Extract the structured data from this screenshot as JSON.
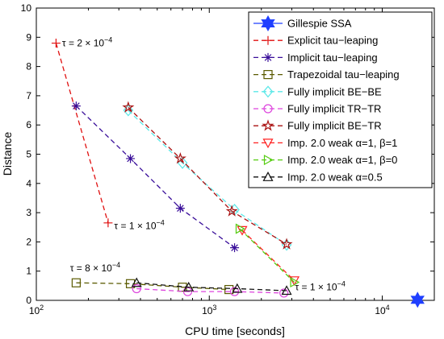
{
  "chart_data": {
    "type": "line",
    "xscale": "log",
    "xlabel": "CPU time [seconds]",
    "ylabel": "Distance",
    "xlim": [
      100,
      20000
    ],
    "ylim": [
      0,
      10
    ],
    "x_ticks": [
      {
        "value": 100,
        "base": "10",
        "exp": "2"
      },
      {
        "value": 1000,
        "base": "10",
        "exp": "3"
      },
      {
        "value": 10000,
        "base": "10",
        "exp": "4"
      }
    ],
    "y_ticks": [
      "0",
      "1",
      "2",
      "3",
      "4",
      "5",
      "6",
      "7",
      "8",
      "9",
      "10"
    ],
    "grid": false,
    "legend_position": "top-right",
    "series": [
      {
        "name": "Gillespie SSA",
        "color": "#1f3fff",
        "marker": "hexstar",
        "dash": "solid",
        "points": [
          [
            16000,
            0.02
          ]
        ]
      },
      {
        "name": "Explicit tau−leaping",
        "color": "#e01010",
        "marker": "plus",
        "dash": "dashed",
        "points": [
          [
            130,
            8.8
          ],
          [
            260,
            2.65
          ]
        ]
      },
      {
        "name": "Implicit tau−leaping",
        "color": "#3a0f9a",
        "marker": "asterisk",
        "dash": "dashed",
        "points": [
          [
            170,
            6.65
          ],
          [
            350,
            4.85
          ],
          [
            680,
            3.15
          ],
          [
            1400,
            1.8
          ]
        ]
      },
      {
        "name": "Trapezoidal tau−leaping",
        "color": "#5a5a00",
        "marker": "square",
        "dash": "dashed",
        "points": [
          [
            170,
            0.6
          ],
          [
            350,
            0.57
          ],
          [
            700,
            0.45
          ],
          [
            1300,
            0.37
          ]
        ]
      },
      {
        "name": "Fully implicit BE−BE",
        "color": "#5ae8e8",
        "marker": "diamond",
        "dash": "dashed",
        "points": [
          [
            340,
            6.5
          ],
          [
            700,
            4.7
          ],
          [
            1400,
            3.1
          ],
          [
            2800,
            1.9
          ]
        ]
      },
      {
        "name": "Fully implicit TR−TR",
        "color": "#dd44dd",
        "marker": "circle",
        "dash": "dashed",
        "points": [
          [
            380,
            0.4
          ],
          [
            750,
            0.3
          ],
          [
            1400,
            0.3
          ],
          [
            2700,
            0.25
          ]
        ]
      },
      {
        "name": "Fully implicit BE−TR",
        "color": "#aa1111",
        "marker": "star",
        "dash": "dashed",
        "points": [
          [
            340,
            6.6
          ],
          [
            680,
            4.85
          ],
          [
            1350,
            3.05
          ],
          [
            2800,
            1.92
          ]
        ]
      },
      {
        "name": "Imp. 2.0 weak α=1, β=1",
        "color": "#ff2020",
        "marker": "tri-down",
        "dash": "dashed",
        "points": [
          [
            1550,
            2.4
          ],
          [
            3100,
            0.68
          ]
        ]
      },
      {
        "name": "Imp. 2.0 weak α=1, β=0",
        "color": "#55cc11",
        "marker": "tri-right",
        "dash": "dashed",
        "points": [
          [
            1500,
            2.45
          ],
          [
            3100,
            0.62
          ]
        ]
      },
      {
        "name": "Imp. 2.0 weak α=0.5",
        "color": "#111111",
        "marker": "tri-up",
        "dash": "dashed",
        "points": [
          [
            380,
            0.6
          ],
          [
            760,
            0.45
          ],
          [
            1450,
            0.4
          ],
          [
            2800,
            0.33
          ]
        ]
      }
    ],
    "annotations": [
      {
        "base": "τ = 2 × 10",
        "exp": "−4",
        "x": 135,
        "y": 8.8
      },
      {
        "base": "τ = 1 × 10",
        "exp": "−4",
        "x": 270,
        "y": 2.55
      },
      {
        "base": "τ = 8 × 10",
        "exp": "−4",
        "x": 150,
        "y": 1.1
      },
      {
        "base": "τ = 1 × 10",
        "exp": "−4",
        "x": 3000,
        "y": 0.45
      }
    ]
  }
}
